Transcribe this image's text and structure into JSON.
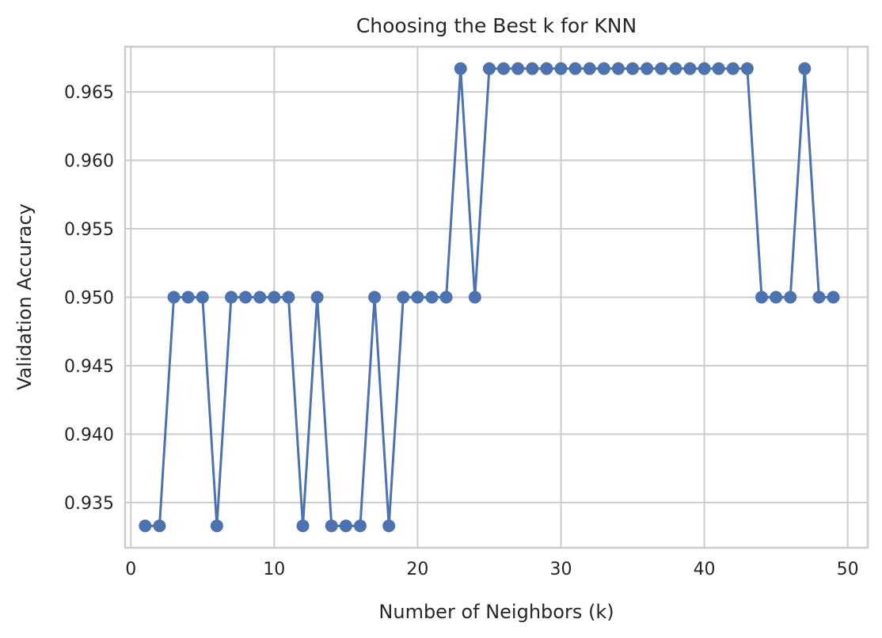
{
  "chart_data": {
    "type": "line",
    "title": "Choosing the Best k for KNN",
    "xlabel": "Number of Neighbors (k)",
    "ylabel": "Validation Accuracy",
    "xlim": [
      -0.4,
      51.4
    ],
    "ylim": [
      0.9317,
      0.9683
    ],
    "xticks": [
      0,
      10,
      20,
      30,
      40,
      50
    ],
    "yticks": [
      0.935,
      0.94,
      0.945,
      0.95,
      0.955,
      0.96,
      0.965
    ],
    "xtick_labels": [
      "0",
      "10",
      "20",
      "30",
      "40",
      "50"
    ],
    "ytick_labels": [
      "0.935",
      "0.940",
      "0.945",
      "0.950",
      "0.955",
      "0.960",
      "0.965"
    ],
    "grid": true,
    "marker": "circle",
    "series": [
      {
        "color": "#4c72b0",
        "x": [
          1,
          2,
          3,
          4,
          5,
          6,
          7,
          8,
          9,
          10,
          11,
          12,
          13,
          14,
          15,
          16,
          17,
          18,
          19,
          20,
          21,
          22,
          23,
          24,
          25,
          26,
          27,
          28,
          29,
          30,
          31,
          32,
          33,
          34,
          35,
          36,
          37,
          38,
          39,
          40,
          41,
          42,
          43,
          44,
          45,
          46,
          47,
          48,
          49
        ],
        "y": [
          0.9333,
          0.9333,
          0.95,
          0.95,
          0.95,
          0.9333,
          0.95,
          0.95,
          0.95,
          0.95,
          0.95,
          0.9333,
          0.95,
          0.9333,
          0.9333,
          0.9333,
          0.95,
          0.9333,
          0.95,
          0.95,
          0.95,
          0.95,
          0.9667,
          0.95,
          0.9667,
          0.9667,
          0.9667,
          0.9667,
          0.9667,
          0.9667,
          0.9667,
          0.9667,
          0.9667,
          0.9667,
          0.9667,
          0.9667,
          0.9667,
          0.9667,
          0.9667,
          0.9667,
          0.9667,
          0.9667,
          0.9667,
          0.95,
          0.95,
          0.95,
          0.9667,
          0.95,
          0.95
        ]
      }
    ]
  }
}
